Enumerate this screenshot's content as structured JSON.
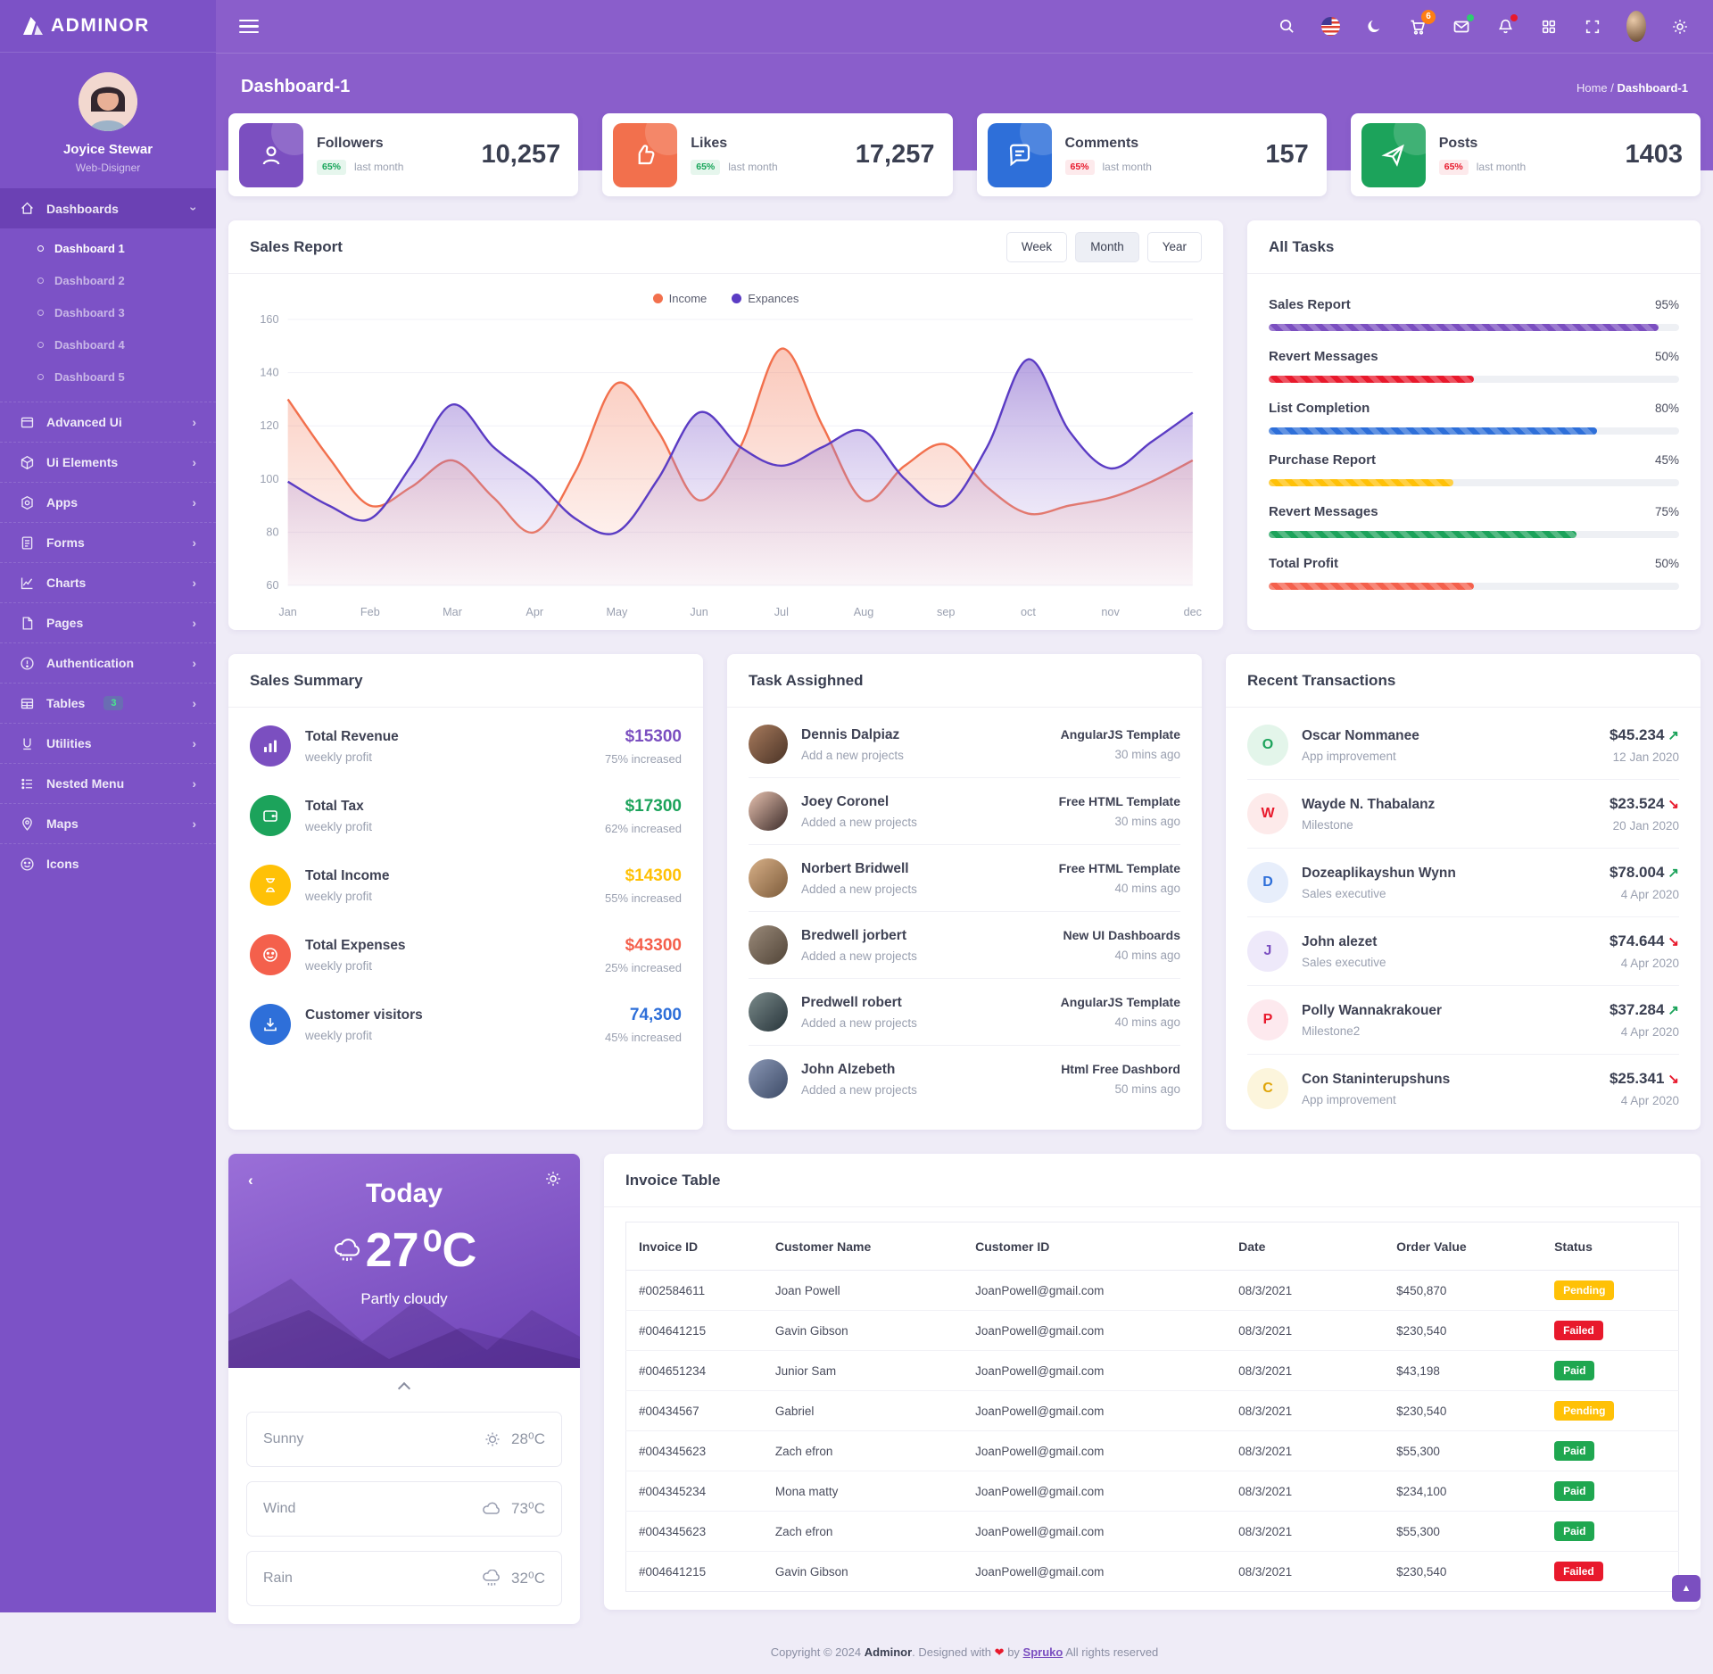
{
  "brand": {
    "name": "ADMINOR"
  },
  "user": {
    "name": "Joyice Stewar",
    "role": "Web-Disigner"
  },
  "topbar": {
    "cart_badge": "6"
  },
  "page": {
    "title": "Dashboard-1",
    "breadcrumb_home": "Home",
    "breadcrumb_sep": "/",
    "breadcrumb_current": "Dashboard-1"
  },
  "sidebar": {
    "dashboards": {
      "label": "Dashboards",
      "children": [
        "Dashboard 1",
        "Dashboard 2",
        "Dashboard 3",
        "Dashboard 4",
        "Dashboard 5"
      ]
    },
    "items": [
      {
        "label": "Advanced Ui"
      },
      {
        "label": "Ui Elements"
      },
      {
        "label": "Apps"
      },
      {
        "label": "Forms"
      },
      {
        "label": "Charts"
      },
      {
        "label": "Pages"
      },
      {
        "label": "Authentication"
      },
      {
        "label": "Tables",
        "badge": "3"
      },
      {
        "label": "Utilities"
      },
      {
        "label": "Nested Menu"
      },
      {
        "label": "Maps"
      },
      {
        "label": "Icons"
      }
    ]
  },
  "stats": [
    {
      "label": "Followers",
      "value": "10,257",
      "badge": "65%",
      "note": "last month",
      "accent": "#7b4fc0",
      "badge_bg": "#e6f6ed",
      "badge_color": "#18a55a"
    },
    {
      "label": "Likes",
      "value": "17,257",
      "badge": "65%",
      "note": "last month",
      "accent": "#f2704d",
      "badge_bg": "#e6f6ed",
      "badge_color": "#18a55a"
    },
    {
      "label": "Comments",
      "value": "157",
      "badge": "65%",
      "note": "last month",
      "accent": "#2e6fd9",
      "badge_bg": "#fdeaec",
      "badge_color": "#e8192c"
    },
    {
      "label": "Posts",
      "value": "1403",
      "badge": "65%",
      "note": "last month",
      "accent": "#1ca35b",
      "badge_bg": "#fdeaec",
      "badge_color": "#e8192c"
    }
  ],
  "sales_report": {
    "title": "Sales Report",
    "filters": [
      "Week",
      "Month",
      "Year"
    ],
    "active_filter": "Month"
  },
  "chart_data": {
    "type": "area",
    "title": "Sales Report",
    "x_labels": [
      "Jan",
      "Feb",
      "Mar",
      "Apr",
      "May",
      "Jun",
      "Jul",
      "Aug",
      "sep",
      "oct",
      "nov",
      "dec"
    ],
    "x_step": 0.5,
    "ylim": [
      60,
      160
    ],
    "y_ticks": [
      60,
      80,
      100,
      120,
      140,
      160
    ],
    "grid": true,
    "legend_position": "top",
    "series": [
      {
        "name": "Income",
        "color": "#f2704d",
        "fill_from": "rgba(242,112,77,0.38)",
        "fill_to": "rgba(242,112,77,0.03)",
        "values": [
          130,
          108,
          90,
          97,
          107,
          93,
          80,
          103,
          136,
          118,
          92,
          112,
          149,
          120,
          92,
          105,
          113,
          97,
          87,
          90,
          93,
          99,
          107
        ]
      },
      {
        "name": "Expances",
        "color": "#5b3cc4",
        "fill_from": "rgba(124,88,200,0.55)",
        "fill_to": "rgba(200,180,235,0.08)",
        "values": [
          99,
          90,
          85,
          105,
          128,
          112,
          100,
          85,
          80,
          100,
          125,
          112,
          105,
          112,
          118,
          100,
          90,
          112,
          145,
          118,
          104,
          114,
          125
        ]
      }
    ]
  },
  "all_tasks": {
    "title": "All Tasks",
    "items": [
      {
        "label": "Sales Report",
        "pct": "95%",
        "color": "#7b4fc0"
      },
      {
        "label": "Revert Messages",
        "pct": "50%",
        "color": "#e8192c"
      },
      {
        "label": "List Completion",
        "pct": "80%",
        "color": "#2e6fd9"
      },
      {
        "label": "Purchase Report",
        "pct": "45%",
        "color": "#ffc107"
      },
      {
        "label": "Revert Messages",
        "pct": "75%",
        "color": "#1ca35b"
      },
      {
        "label": "Total Profit",
        "pct": "50%",
        "color": "#f4604c"
      }
    ]
  },
  "sales_summary": {
    "title": "Sales Summary",
    "items": [
      {
        "label": "Total Revenue",
        "sub": "weekly profit",
        "value": "$15300",
        "note": "75% increased",
        "color": "#7b4fc0"
      },
      {
        "label": "Total Tax",
        "sub": "weekly profit",
        "value": "$17300",
        "note": "62% increased",
        "color": "#1ca35b"
      },
      {
        "label": "Total Income",
        "sub": "weekly profit",
        "value": "$14300",
        "note": "55% increased",
        "color": "#ffc107"
      },
      {
        "label": "Total Expenses",
        "sub": "weekly profit",
        "value": "$43300",
        "note": "25% increased",
        "color": "#f4604c"
      },
      {
        "label": "Customer visitors",
        "sub": "weekly profit",
        "value": "74,300",
        "note": "45% increased",
        "color": "#2e6fd9"
      }
    ]
  },
  "task_assigned": {
    "title": "Task Assighned",
    "items": [
      {
        "name": "Dennis Dalpiaz",
        "sub": "Add a new projects",
        "right": "AngularJS Template",
        "time": "30 mins ago"
      },
      {
        "name": "Joey Coronel",
        "sub": "Added a new projects",
        "right": "Free HTML Template",
        "time": "30 mins ago"
      },
      {
        "name": "Norbert Bridwell",
        "sub": "Added a new projects",
        "right": "Free HTML Template",
        "time": "40 mins ago"
      },
      {
        "name": "Bredwell jorbert",
        "sub": "Added a new projects",
        "right": "New UI Dashboards",
        "time": "40 mins ago"
      },
      {
        "name": "Predwell robert",
        "sub": "Added a new projects",
        "right": "AngularJS Template",
        "time": "40 mins ago"
      },
      {
        "name": "John Alzebeth",
        "sub": "Added a new projects",
        "right": "Html Free Dashbord",
        "time": "50 mins ago"
      }
    ]
  },
  "transactions": {
    "title": "Recent Transactions",
    "items": [
      {
        "initial": "O",
        "name": "Oscar Nommanee",
        "sub": "App improvement",
        "amount": "$45.234",
        "arrow": "↗",
        "arrow_color": "#1ca35b",
        "date": "12 Jan 2020",
        "tint_bg": "#e3f5ea",
        "tint_color": "#1ca35b"
      },
      {
        "initial": "W",
        "name": "Wayde N. Thabalanz",
        "sub": "Milestone",
        "amount": "$23.524",
        "arrow": "↘",
        "arrow_color": "#e8192c",
        "date": "20 Jan 2020",
        "tint_bg": "#fdeaea",
        "tint_color": "#e8192c"
      },
      {
        "initial": "D",
        "name": "Dozeaplikayshun Wynn",
        "sub": "Sales executive",
        "amount": "$78.004",
        "arrow": "↗",
        "arrow_color": "#1ca35b",
        "date": "4 Apr 2020",
        "tint_bg": "#e7eefb",
        "tint_color": "#2e6fd9"
      },
      {
        "initial": "J",
        "name": "John alezet",
        "sub": "Sales executive",
        "amount": "$74.644",
        "arrow": "↘",
        "arrow_color": "#e8192c",
        "date": "4 Apr 2020",
        "tint_bg": "#eee9fa",
        "tint_color": "#7b4fc0"
      },
      {
        "initial": "P",
        "name": "Polly Wannakrakouer",
        "sub": "Milestone2",
        "amount": "$37.284",
        "arrow": "↗",
        "arrow_color": "#1ca35b",
        "date": "4 Apr 2020",
        "tint_bg": "#fde9ee",
        "tint_color": "#e8192c"
      },
      {
        "initial": "C",
        "name": "Con Staninterupshuns",
        "sub": "App improvement",
        "amount": "$25.341",
        "arrow": "↘",
        "arrow_color": "#e8192c",
        "date": "4 Apr 2020",
        "tint_bg": "#fcf5dc",
        "tint_color": "#dfa407"
      }
    ]
  },
  "weather": {
    "day": "Today",
    "temp": "27",
    "unit": "⁰C",
    "desc": "Partly cloudy",
    "rows": [
      {
        "label": "Sunny",
        "value": "28",
        "unit": "⁰C"
      },
      {
        "label": "Wind",
        "value": "73",
        "unit": "⁰C"
      },
      {
        "label": "Rain",
        "value": "32",
        "unit": "⁰C"
      }
    ]
  },
  "invoice": {
    "title": "Invoice Table",
    "headers": [
      "Invoice ID",
      "Customer Name",
      "Customer ID",
      "Date",
      "Order Value",
      "Status"
    ],
    "rows": [
      {
        "id": "#002584611",
        "name": "Joan Powell",
        "email": "JoanPowell@gmail.com",
        "date": "08/3/2021",
        "value": "$450,870",
        "status": "Pending",
        "status_color": "#ffc107"
      },
      {
        "id": "#004641215",
        "name": "Gavin Gibson",
        "email": "JoanPowell@gmail.com",
        "date": "08/3/2021",
        "value": "$230,540",
        "status": "Failed",
        "status_color": "#e8192c"
      },
      {
        "id": "#004651234",
        "name": "Junior Sam",
        "email": "JoanPowell@gmail.com",
        "date": "08/3/2021",
        "value": "$43,198",
        "status": "Paid",
        "status_color": "#1fa750"
      },
      {
        "id": "#00434567",
        "name": "Gabriel",
        "email": "JoanPowell@gmail.com",
        "date": "08/3/2021",
        "value": "$230,540",
        "status": "Pending",
        "status_color": "#ffc107"
      },
      {
        "id": "#004345623",
        "name": "Zach efron",
        "email": "JoanPowell@gmail.com",
        "date": "08/3/2021",
        "value": "$55,300",
        "status": "Paid",
        "status_color": "#1fa750"
      },
      {
        "id": "#004345234",
        "name": "Mona matty",
        "email": "JoanPowell@gmail.com",
        "date": "08/3/2021",
        "value": "$234,100",
        "status": "Paid",
        "status_color": "#1fa750"
      },
      {
        "id": "#004345623",
        "name": "Zach efron",
        "email": "JoanPowell@gmail.com",
        "date": "08/3/2021",
        "value": "$55,300",
        "status": "Paid",
        "status_color": "#1fa750"
      },
      {
        "id": "#004641215",
        "name": "Gavin Gibson",
        "email": "JoanPowell@gmail.com",
        "date": "08/3/2021",
        "value": "$230,540",
        "status": "Failed",
        "status_color": "#e8192c"
      }
    ]
  },
  "footer": {
    "prefix": "Copyright © 2024",
    "brand": "Adminor",
    "mid": ". Designed with",
    "heart": "❤",
    "by": "by",
    "link": "Spruko",
    "suffix": "All rights reserved"
  }
}
